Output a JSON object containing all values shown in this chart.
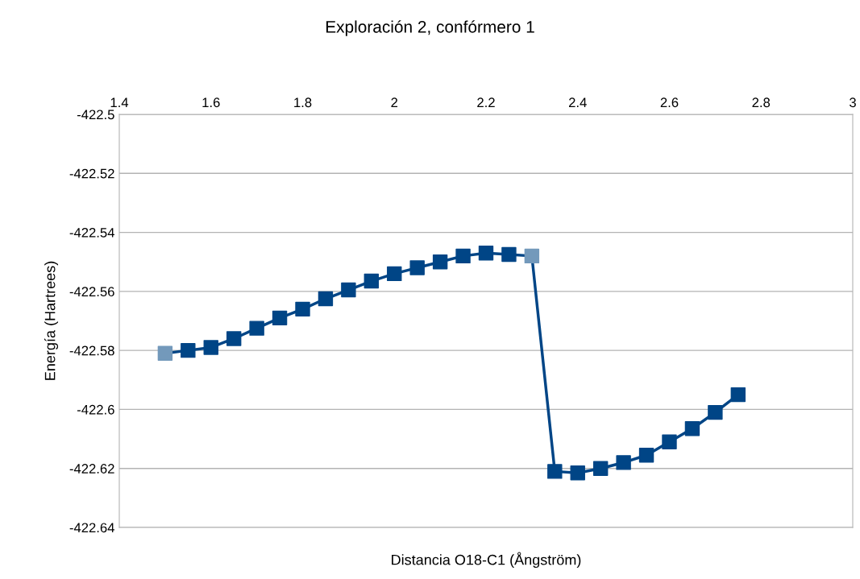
{
  "chart_data": {
    "type": "line",
    "title": "Exploración 2, confórmero 1",
    "xlabel": "Distancia O18-C1 (Ångström)",
    "ylabel": "Energía (Hartrees)",
    "x": [
      1.5,
      1.55,
      1.6,
      1.65,
      1.7,
      1.75,
      1.8,
      1.85,
      1.9,
      1.95,
      2.0,
      2.05,
      2.1,
      2.15,
      2.2,
      2.25,
      2.3,
      2.35,
      2.4,
      2.45,
      2.5,
      2.55,
      2.6,
      2.65,
      2.7,
      2.75
    ],
    "series": [
      {
        "color": "#004586",
        "colors": [
          "#7399bb",
          "#004586",
          "#004586",
          "#004586",
          "#004586",
          "#004586",
          "#004586",
          "#004586",
          "#004586",
          "#004586",
          "#004586",
          "#004586",
          "#004586",
          "#004586",
          "#004586",
          "#004586",
          "#7399bb",
          "#004586",
          "#004586",
          "#004586",
          "#004586",
          "#004586",
          "#004586",
          "#004586",
          "#004586",
          "#004586"
        ],
        "values": [
          -422.581,
          -422.58,
          -422.579,
          -422.576,
          -422.5725,
          -422.569,
          -422.566,
          -422.5625,
          -422.5595,
          -422.5565,
          -422.554,
          -422.552,
          -422.55,
          -422.548,
          -422.547,
          -422.5475,
          -422.548,
          -422.621,
          -422.6215,
          -422.62,
          -422.618,
          -422.6155,
          -422.611,
          -422.6065,
          -422.601,
          -422.595
        ]
      }
    ],
    "xlim": [
      1.4,
      3
    ],
    "xticks": [
      1.4,
      1.6,
      1.8,
      2,
      2.2,
      2.4,
      2.6,
      2.8,
      3
    ],
    "ylim": [
      -422.64,
      -422.5
    ],
    "yticks": [
      -422.64,
      -422.62,
      -422.6,
      -422.58,
      -422.56,
      -422.54,
      -422.52,
      -422.5
    ],
    "grid": "y",
    "marker": "square",
    "line_style": "solid"
  }
}
